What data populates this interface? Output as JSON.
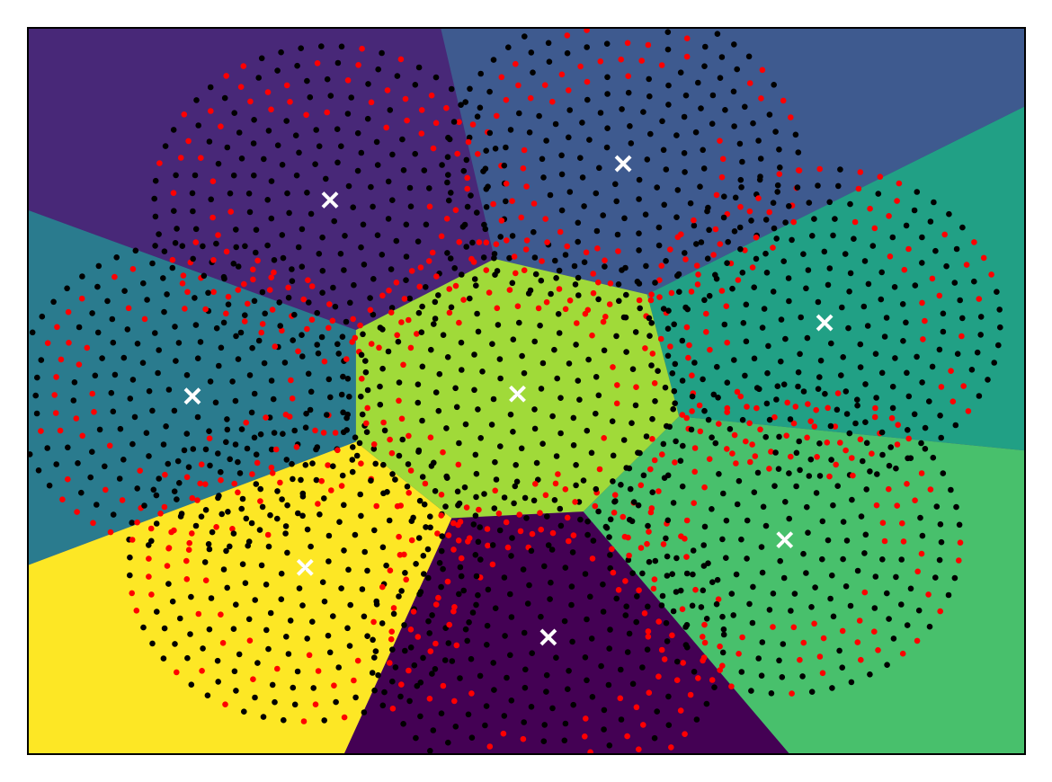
{
  "chart_data": {
    "type": "scatter",
    "title": "",
    "xlabel": "",
    "ylabel": "",
    "xlim": [
      0,
      1
    ],
    "ylim": [
      0,
      1
    ],
    "grid": false,
    "ticks": false,
    "region_colors": [
      "#440154",
      "#482878",
      "#3e4989",
      "#31688e",
      "#26828e",
      "#1f9e89",
      "#35b779",
      "#6ece58",
      "#b5de2b",
      "#fde725"
    ],
    "regions": [
      {
        "name": "bottom-center",
        "color": "#440154",
        "polygon": [
          [
            0.317,
            0
          ],
          [
            0.425,
            0.325
          ],
          [
            0.557,
            0.334
          ],
          [
            0.764,
            0
          ]
        ]
      },
      {
        "name": "top-left",
        "color": "#482878",
        "polygon": [
          [
            0,
            0
          ],
          [
            0,
            0.749
          ],
          [
            0.329,
            0.584
          ],
          [
            0.468,
            0.682
          ],
          [
            0.414,
            1
          ],
          [
            0,
            1
          ]
        ],
        "note": "upper-left area"
      },
      {
        "name": "top-center",
        "color": "#3e5a8f",
        "polygon": [
          [
            0.414,
            1
          ],
          [
            0.468,
            0.682
          ],
          [
            0.621,
            0.633
          ],
          [
            1,
            0.892
          ],
          [
            1,
            1
          ]
        ]
      },
      {
        "name": "left",
        "color": "#2a7b8e",
        "polygon": [
          [
            0,
            0.26
          ],
          [
            0.329,
            0.43
          ],
          [
            0.329,
            0.584
          ],
          [
            0,
            0.749
          ]
        ]
      },
      {
        "name": "right",
        "color": "#21a085",
        "polygon": [
          [
            0.621,
            0.633
          ],
          [
            1,
            0.892
          ],
          [
            1,
            0.418
          ],
          [
            0.653,
            0.465
          ]
        ]
      },
      {
        "name": "bottom-right",
        "color": "#48c06c",
        "polygon": [
          [
            0.557,
            0.334
          ],
          [
            0.653,
            0.465
          ],
          [
            1,
            0.418
          ],
          [
            1,
            0
          ],
          [
            0.764,
            0
          ]
        ]
      },
      {
        "name": "bottom-left",
        "color": "#fde725",
        "polygon": [
          [
            0,
            0
          ],
          [
            0,
            0.26
          ],
          [
            0.329,
            0.43
          ],
          [
            0.425,
            0.325
          ],
          [
            0.317,
            0
          ]
        ]
      },
      {
        "name": "center",
        "color": "#a0da39",
        "polygon": [
          [
            0.329,
            0.43
          ],
          [
            0.329,
            0.584
          ],
          [
            0.468,
            0.682
          ],
          [
            0.621,
            0.633
          ],
          [
            0.653,
            0.465
          ],
          [
            0.557,
            0.334
          ],
          [
            0.425,
            0.325
          ]
        ]
      }
    ],
    "centroids": [
      {
        "x": 0.303,
        "y": 0.763
      },
      {
        "x": 0.597,
        "y": 0.813
      },
      {
        "x": 0.165,
        "y": 0.493
      },
      {
        "x": 0.491,
        "y": 0.496
      },
      {
        "x": 0.799,
        "y": 0.594
      },
      {
        "x": 0.278,
        "y": 0.257
      },
      {
        "x": 0.522,
        "y": 0.161
      },
      {
        "x": 0.759,
        "y": 0.295
      }
    ],
    "point_colors": {
      "majority": "#000000",
      "minority": "#ff0000"
    },
    "centroid_marker": {
      "symbol": "x",
      "color": "#ffffff"
    }
  }
}
